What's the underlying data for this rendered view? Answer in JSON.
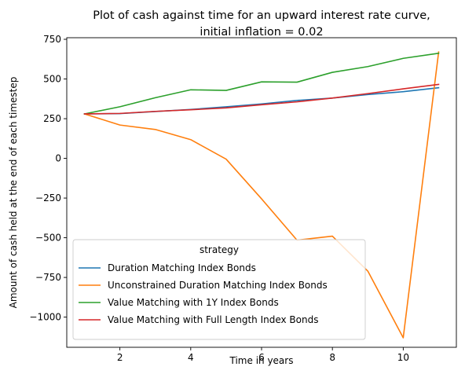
{
  "chart_data": {
    "type": "line",
    "title_line1": "Plot of cash against time for an upward interest rate curve,",
    "title_line2": "initial inflation = 0.02",
    "xlabel": "Time in years",
    "ylabel": "Amount of cash held at the end of each timestep",
    "xlim": [
      0.5,
      11.5
    ],
    "ylim": [
      -1190,
      760
    ],
    "x_ticks": [
      2,
      4,
      6,
      8,
      10
    ],
    "y_ticks": [
      -1000,
      -750,
      -500,
      -250,
      0,
      250,
      500,
      750
    ],
    "legend_title": "strategy",
    "legend_position": "lower-left",
    "x": [
      1,
      2,
      3,
      4,
      5,
      6,
      7,
      8,
      9,
      10,
      11
    ],
    "series": [
      {
        "name": "Duration Matching Index Bonds",
        "color": "#1f77b4",
        "values": [
          280,
          282,
          295,
          308,
          325,
          343,
          365,
          380,
          402,
          420,
          445
        ]
      },
      {
        "name": "Unconstrained Duration Matching Index Bonds",
        "color": "#ff7f0e",
        "values": [
          280,
          210,
          182,
          118,
          -5,
          -255,
          -515,
          -490,
          -710,
          -1130,
          670
        ]
      },
      {
        "name": "Value Matching with 1Y Index Bonds",
        "color": "#2ca02c",
        "values": [
          280,
          325,
          382,
          432,
          428,
          482,
          480,
          542,
          578,
          630,
          662
        ]
      },
      {
        "name": "Value Matching with Full Length Index Bonds",
        "color": "#d62728",
        "values": [
          280,
          283,
          296,
          306,
          318,
          338,
          356,
          380,
          408,
          438,
          466
        ]
      }
    ]
  }
}
